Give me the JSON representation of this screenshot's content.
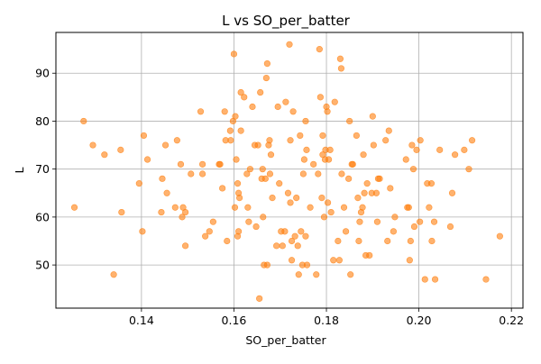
{
  "chart_data": {
    "type": "scatter",
    "title": "L vs SO_per_batter",
    "xlabel": "SO_per_batter",
    "ylabel": "L",
    "xlim": [
      0.1215,
      0.2225
    ],
    "ylim": [
      41.0,
      98.5
    ],
    "xticks": [
      0.14,
      0.16,
      0.18,
      0.2,
      0.22
    ],
    "xtick_labels": [
      "0.14",
      "0.16",
      "0.18",
      "0.20",
      "0.22"
    ],
    "yticks": [
      50,
      60,
      70,
      80,
      90
    ],
    "ytick_labels": [
      "50",
      "60",
      "70",
      "80",
      "90"
    ],
    "grid": true,
    "legend": "none",
    "marker_color": "#ff7f0e",
    "marker_alpha": 0.6,
    "series": [
      {
        "points": [
          [
            0.1255,
            62
          ],
          [
            0.1275,
            80
          ],
          [
            0.1295,
            75
          ],
          [
            0.132,
            73
          ],
          [
            0.134,
            48
          ],
          [
            0.1355,
            74
          ],
          [
            0.1357,
            61
          ],
          [
            0.1395,
            67
          ],
          [
            0.1402,
            57
          ],
          [
            0.1405,
            77
          ],
          [
            0.1413,
            72
          ],
          [
            0.1443,
            61
          ],
          [
            0.1445,
            68
          ],
          [
            0.1452,
            75
          ],
          [
            0.1455,
            65
          ],
          [
            0.1473,
            62
          ],
          [
            0.1477,
            76
          ],
          [
            0.1485,
            71
          ],
          [
            0.1488,
            60
          ],
          [
            0.149,
            62
          ],
          [
            0.1495,
            61
          ],
          [
            0.1495,
            54
          ],
          [
            0.1507,
            69
          ],
          [
            0.1528,
            82
          ],
          [
            0.1532,
            71
          ],
          [
            0.1532,
            69
          ],
          [
            0.1538,
            56
          ],
          [
            0.1547,
            57
          ],
          [
            0.1555,
            59
          ],
          [
            0.1568,
            71
          ],
          [
            0.157,
            71
          ],
          [
            0.1575,
            66
          ],
          [
            0.1582,
            76
          ],
          [
            0.158,
            82
          ],
          [
            0.1585,
            55
          ],
          [
            0.1592,
            78
          ],
          [
            0.1593,
            76
          ],
          [
            0.1598,
            80
          ],
          [
            0.16,
            94
          ],
          [
            0.1602,
            62
          ],
          [
            0.1603,
            81
          ],
          [
            0.1605,
            72
          ],
          [
            0.1608,
            56
          ],
          [
            0.1608,
            67
          ],
          [
            0.161,
            57
          ],
          [
            0.161,
            65
          ],
          [
            0.1612,
            64
          ],
          [
            0.1615,
            86
          ],
          [
            0.1615,
            78
          ],
          [
            0.1622,
            85
          ],
          [
            0.1628,
            69
          ],
          [
            0.163,
            62
          ],
          [
            0.1632,
            59
          ],
          [
            0.1635,
            70
          ],
          [
            0.164,
            83
          ],
          [
            0.1645,
            75
          ],
          [
            0.1648,
            58
          ],
          [
            0.1652,
            75
          ],
          [
            0.1655,
            43
          ],
          [
            0.1657,
            86
          ],
          [
            0.166,
            68
          ],
          [
            0.1662,
            70
          ],
          [
            0.1663,
            60
          ],
          [
            0.1665,
            50
          ],
          [
            0.1668,
            68
          ],
          [
            0.167,
            89
          ],
          [
            0.1672,
            92
          ],
          [
            0.1672,
            50
          ],
          [
            0.1675,
            75
          ],
          [
            0.1677,
            76
          ],
          [
            0.1678,
            69
          ],
          [
            0.168,
            73
          ],
          [
            0.1683,
            64
          ],
          [
            0.1692,
            54
          ],
          [
            0.1695,
            83
          ],
          [
            0.1698,
            67
          ],
          [
            0.1702,
            57
          ],
          [
            0.1705,
            54
          ],
          [
            0.171,
            57
          ],
          [
            0.1712,
            84
          ],
          [
            0.1717,
            65
          ],
          [
            0.172,
            96
          ],
          [
            0.1722,
            76
          ],
          [
            0.1722,
            63
          ],
          [
            0.1725,
            55
          ],
          [
            0.1725,
            51
          ],
          [
            0.1728,
            82
          ],
          [
            0.1732,
            56
          ],
          [
            0.1735,
            64
          ],
          [
            0.1738,
            54
          ],
          [
            0.174,
            48
          ],
          [
            0.1743,
            77
          ],
          [
            0.1745,
            57
          ],
          [
            0.1748,
            50
          ],
          [
            0.175,
            69
          ],
          [
            0.1752,
            72
          ],
          [
            0.1755,
            56
          ],
          [
            0.1755,
            80
          ],
          [
            0.1757,
            74
          ],
          [
            0.1758,
            50
          ],
          [
            0.1765,
            62
          ],
          [
            0.1772,
            71
          ],
          [
            0.1778,
            48
          ],
          [
            0.1782,
            69
          ],
          [
            0.1785,
            95
          ],
          [
            0.1787,
            85
          ],
          [
            0.179,
            64
          ],
          [
            0.1792,
            77
          ],
          [
            0.1792,
            73
          ],
          [
            0.1795,
            60
          ],
          [
            0.1797,
            72
          ],
          [
            0.1798,
            74
          ],
          [
            0.18,
            83
          ],
          [
            0.1802,
            82
          ],
          [
            0.1803,
            63
          ],
          [
            0.1805,
            72
          ],
          [
            0.1808,
            74
          ],
          [
            0.181,
            61
          ],
          [
            0.1815,
            51
          ],
          [
            0.1818,
            84
          ],
          [
            0.1825,
            55
          ],
          [
            0.1828,
            51
          ],
          [
            0.183,
            93
          ],
          [
            0.1832,
            91
          ],
          [
            0.1833,
            69
          ],
          [
            0.1838,
            62
          ],
          [
            0.1842,
            57
          ],
          [
            0.1848,
            68
          ],
          [
            0.185,
            80
          ],
          [
            0.1852,
            48
          ],
          [
            0.1855,
            71
          ],
          [
            0.1857,
            71
          ],
          [
            0.1865,
            77
          ],
          [
            0.1868,
            64
          ],
          [
            0.187,
            55
          ],
          [
            0.1872,
            59
          ],
          [
            0.1875,
            61
          ],
          [
            0.1878,
            62
          ],
          [
            0.188,
            73
          ],
          [
            0.1882,
            65
          ],
          [
            0.1885,
            52
          ],
          [
            0.1888,
            67
          ],
          [
            0.1893,
            52
          ],
          [
            0.1898,
            65
          ],
          [
            0.19,
            81
          ],
          [
            0.1902,
            75
          ],
          [
            0.1908,
            65
          ],
          [
            0.191,
            59
          ],
          [
            0.1912,
            68
          ],
          [
            0.1915,
            68
          ],
          [
            0.1928,
            76
          ],
          [
            0.1932,
            55
          ],
          [
            0.1935,
            78
          ],
          [
            0.1938,
            66
          ],
          [
            0.1945,
            57
          ],
          [
            0.1948,
            60
          ],
          [
            0.1972,
            72
          ],
          [
            0.1975,
            62
          ],
          [
            0.1978,
            62
          ],
          [
            0.198,
            51
          ],
          [
            0.1982,
            55
          ],
          [
            0.1985,
            75
          ],
          [
            0.1988,
            70
          ],
          [
            0.199,
            58
          ],
          [
            0.1995,
            74
          ],
          [
            0.2002,
            59
          ],
          [
            0.2003,
            76
          ],
          [
            0.2013,
            47
          ],
          [
            0.2018,
            67
          ],
          [
            0.2022,
            62
          ],
          [
            0.2027,
            67
          ],
          [
            0.2028,
            55
          ],
          [
            0.2033,
            59
          ],
          [
            0.2035,
            47
          ],
          [
            0.2045,
            74
          ],
          [
            0.2068,
            58
          ],
          [
            0.2072,
            65
          ],
          [
            0.2078,
            73
          ],
          [
            0.2098,
            74
          ],
          [
            0.2108,
            70
          ],
          [
            0.2115,
            76
          ],
          [
            0.2145,
            47
          ],
          [
            0.2175,
            56
          ]
        ]
      }
    ]
  }
}
